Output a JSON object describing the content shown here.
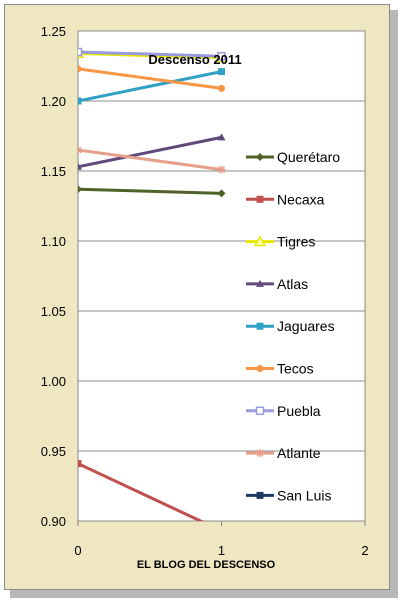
{
  "chart_data": {
    "type": "line",
    "title": "Descenso 2011",
    "xlabel": "EL BLOG DEL DESCENSO",
    "ylabel": "",
    "xlim": [
      0,
      2
    ],
    "ylim": [
      0.9,
      1.25
    ],
    "x_ticks": [
      "0",
      "1",
      "2"
    ],
    "y_ticks": [
      "0.90",
      "0.95",
      "1.00",
      "1.05",
      "1.10",
      "1.15",
      "1.20",
      "1.25"
    ],
    "grid": true,
    "legend": "right",
    "x": [
      0,
      1
    ],
    "series": [
      {
        "name": "Querétaro",
        "values": [
          1.137,
          1.134
        ],
        "color": "#4f6228",
        "marker": "diamond"
      },
      {
        "name": "Necaxa",
        "values": [
          0.941,
          0.893
        ],
        "color": "#c0504d",
        "marker": "square"
      },
      {
        "name": "Tigres",
        "values": [
          1.234,
          1.231
        ],
        "color": "#e6e600",
        "marker": "triangle-open"
      },
      {
        "name": "Atlas",
        "values": [
          1.153,
          1.174
        ],
        "color": "#604a7b",
        "marker": "triangle"
      },
      {
        "name": "Jaguares",
        "values": [
          1.2,
          1.221
        ],
        "color": "#31a0c5",
        "marker": "square"
      },
      {
        "name": "Tecos",
        "values": [
          1.223,
          1.209
        ],
        "color": "#f79646",
        "marker": "circle"
      },
      {
        "name": "Puebla",
        "values": [
          1.235,
          1.232
        ],
        "color": "#9999dd",
        "marker": "square-open"
      },
      {
        "name": "Atlante",
        "values": [
          1.165,
          1.151
        ],
        "color": "#e6a08a",
        "marker": "star"
      },
      {
        "name": "San Luis",
        "values": [
          null,
          null
        ],
        "color": "#1f3864",
        "marker": "square"
      }
    ]
  }
}
